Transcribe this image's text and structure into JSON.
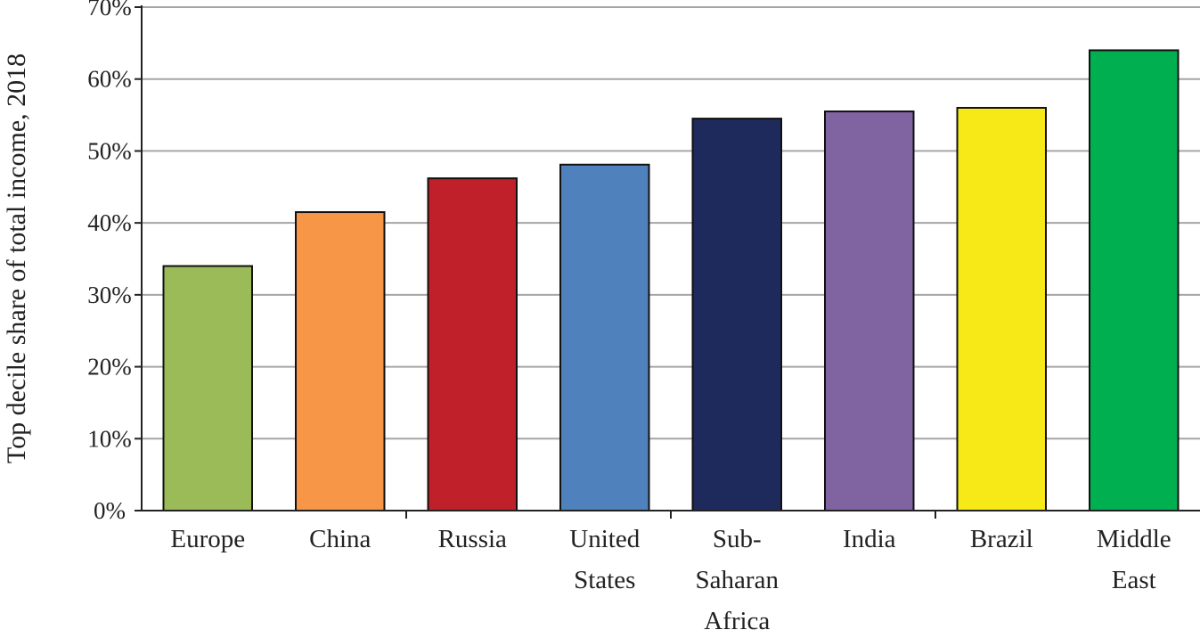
{
  "chart_data": {
    "type": "bar",
    "ylabel": "Top decile share of total income, 2018",
    "xlabel": "",
    "ylim": [
      0,
      70
    ],
    "yticks": [
      0,
      10,
      20,
      30,
      40,
      50,
      60,
      70
    ],
    "ytick_labels": [
      "0%",
      "10%",
      "20%",
      "30%",
      "40%",
      "50%",
      "60%",
      "70%"
    ],
    "grid": "horizontal",
    "legend": "none",
    "categories": [
      {
        "label_lines": [
          "Europe"
        ],
        "value": 34,
        "color": "#9bbb59"
      },
      {
        "label_lines": [
          "China"
        ],
        "value": 41.5,
        "color": "#f79646"
      },
      {
        "label_lines": [
          "Russia"
        ],
        "value": 46.2,
        "color": "#c0202a"
      },
      {
        "label_lines": [
          "United",
          "States"
        ],
        "value": 48.1,
        "color": "#4f81bd"
      },
      {
        "label_lines": [
          "Sub-",
          "Saharan",
          "Africa"
        ],
        "value": 54.5,
        "color": "#1f2a5c"
      },
      {
        "label_lines": [
          "India"
        ],
        "value": 55.5,
        "color": "#8064a2"
      },
      {
        "label_lines": [
          "Brazil"
        ],
        "value": 56,
        "color": "#f7e918"
      },
      {
        "label_lines": [
          "Middle",
          "East"
        ],
        "value": 64,
        "color": "#00b050"
      }
    ]
  }
}
